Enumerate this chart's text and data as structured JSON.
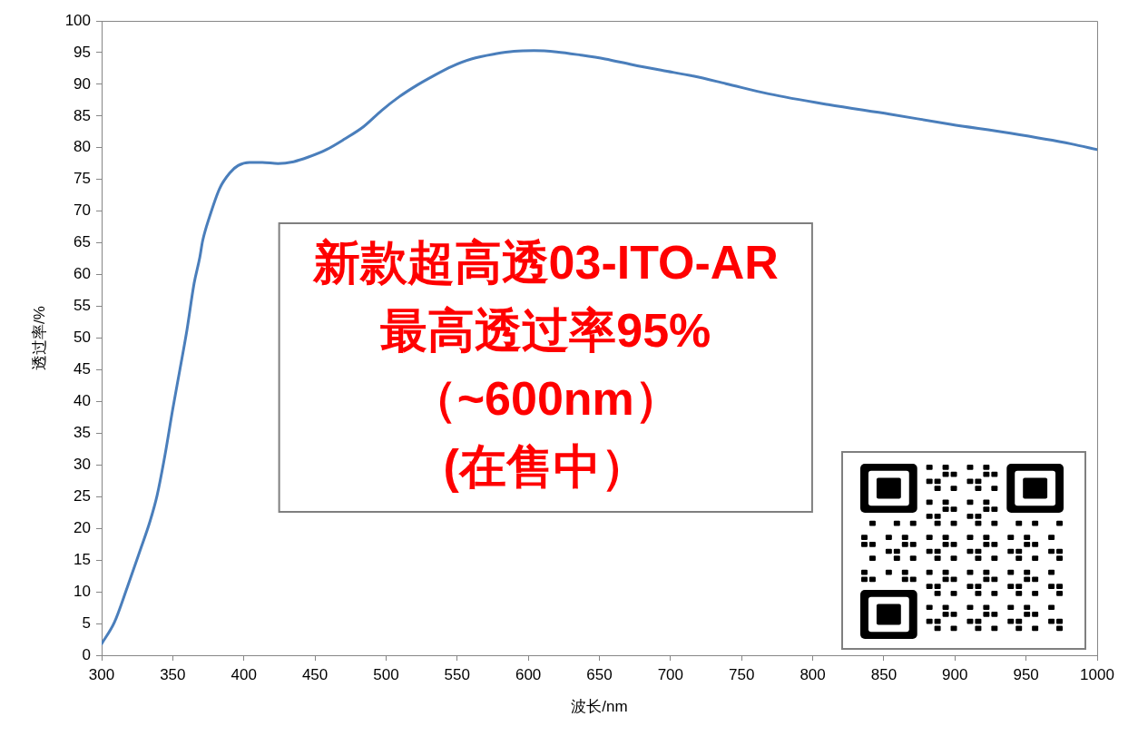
{
  "chart_data": {
    "type": "line",
    "xlabel": "波长/nm",
    "ylabel": "透过率/%",
    "x": [
      300,
      309,
      318,
      327,
      334,
      339,
      344.5,
      350,
      355,
      360,
      365,
      369,
      371,
      376,
      383,
      390,
      396,
      404,
      413,
      424,
      435,
      445,
      458,
      471,
      484,
      497,
      509,
      522,
      533,
      546,
      560,
      577,
      590,
      604,
      620,
      637,
      654,
      673,
      694,
      716,
      739,
      769,
      811,
      854,
      897,
      939,
      982,
      1000
    ],
    "values": [
      1.8,
      5.2,
      10.7,
      16.5,
      21.1,
      25.2,
      31.5,
      38.8,
      45.0,
      51.3,
      58.6,
      62.7,
      65.3,
      69.2,
      73.6,
      76.0,
      77.2,
      77.7,
      77.7,
      77.5,
      77.8,
      78.5,
      79.7,
      81.4,
      83.3,
      85.9,
      88.0,
      89.9,
      91.3,
      92.8,
      94.0,
      94.8,
      95.2,
      95.3,
      95.1,
      94.6,
      94.0,
      93.1,
      92.2,
      91.3,
      90.1,
      88.5,
      86.8,
      85.3,
      83.7,
      82.3,
      80.6,
      79.7
    ],
    "color": "#4a7ebb",
    "xlim": [
      300,
      1000
    ],
    "xticks": [
      300,
      350,
      400,
      450,
      500,
      550,
      600,
      650,
      700,
      750,
      800,
      850,
      900,
      950,
      1000
    ],
    "ylim": [
      0,
      100
    ],
    "yticks": [
      0,
      5,
      10,
      15,
      20,
      25,
      30,
      35,
      40,
      45,
      50,
      55,
      60,
      65,
      70,
      75,
      80,
      85,
      90,
      95,
      100
    ],
    "grid": false,
    "legend": false,
    "marker": "none",
    "line_style": "solid",
    "annotations": [
      "新款超高透03-ITO-AR\n最高透过率95%\n（~600nm）\n(在售中）"
    ]
  }
}
